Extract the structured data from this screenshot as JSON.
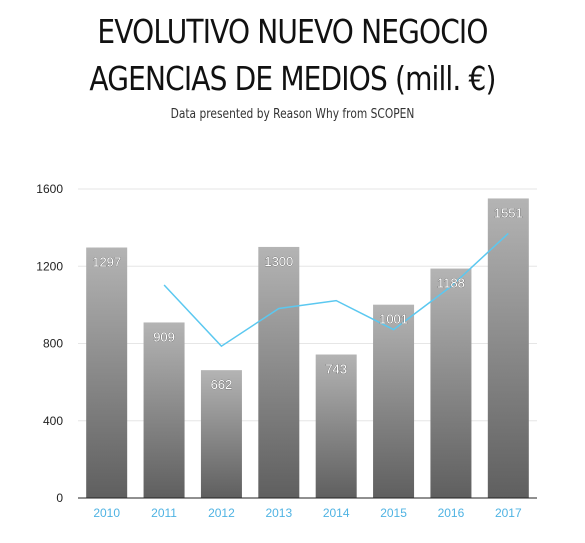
{
  "title_line1": "EVOLUTIVO NUEVO NEGOCIO",
  "title_line2": "AGENCIAS DE MEDIOS (mill. €)",
  "subtitle": "Data presented by Reason Why from SCOPEN",
  "colors": {
    "bar_top": "#b4b4b4",
    "bar_bottom": "#5f5f5f",
    "trend_line": "#5bc8f0",
    "x_tick_label": "#4fb3e3",
    "gridline": "#e6e6e6",
    "axis": "#222222",
    "data_label": "#ffffff"
  },
  "chart_data": {
    "type": "bar",
    "categories": [
      "2010",
      "2011",
      "2012",
      "2013",
      "2014",
      "2015",
      "2016",
      "2017"
    ],
    "values": [
      1297,
      909,
      662,
      1300,
      743,
      1001,
      1188,
      1551
    ],
    "data_labels": [
      "1297",
      "909",
      "662",
      "1300",
      "743",
      "1001",
      "1188",
      "1551"
    ],
    "trend_line": {
      "type": "line",
      "x": [
        "2011",
        "2012",
        "2013",
        "2014",
        "2015",
        "2016",
        "2017"
      ],
      "values": [
        1103,
        786,
        981,
        1022,
        872,
        1095,
        1370
      ]
    },
    "yticks": [
      "0",
      "400",
      "800",
      "1200",
      "1600"
    ],
    "ylim": [
      0,
      1600
    ],
    "grid": true,
    "legend": "none"
  }
}
